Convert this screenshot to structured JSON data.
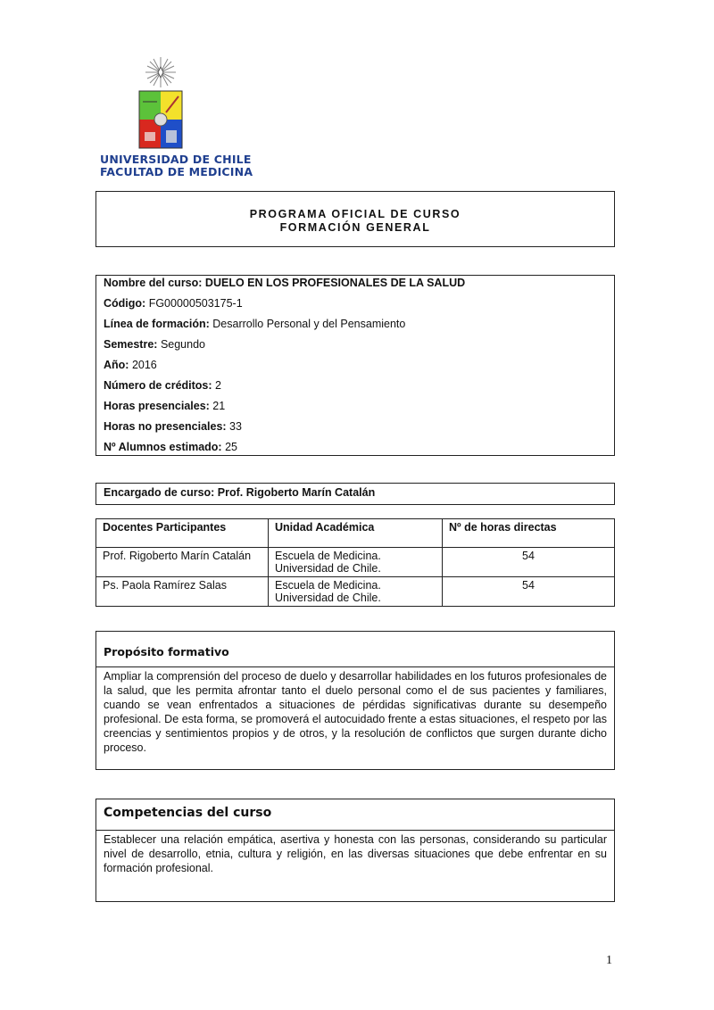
{
  "header": {
    "university": "UNIVERSIDAD DE CHILE",
    "faculty": "FACULTAD DE MEDICINA",
    "logo_colors": [
      "#5cc23a",
      "#f3e12b",
      "#d8281f",
      "#1f4fc8"
    ]
  },
  "title": {
    "line1": "PROGRAMA OFICIAL DE CURSO",
    "line2": "FORMACIÓN GENERAL"
  },
  "info": [
    {
      "label": "Nombre del curso:",
      "value": "DUELO EN LOS PROFESIONALES DE LA SALUD",
      "bold_value": true
    },
    {
      "label": "Código:",
      "value": "FG00000503175-1"
    },
    {
      "label": "Línea de formación:",
      "value": "Desarrollo Personal y del Pensamiento"
    },
    {
      "label": "Semestre:",
      "value": "Segundo"
    },
    {
      "label": "Año:",
      "value": "2016"
    },
    {
      "label": "Número de créditos:",
      "value": "2"
    },
    {
      "label": "Horas presenciales:",
      "value": "21"
    },
    {
      "label": "Horas no presenciales:",
      "value": "33"
    },
    {
      "label": "Nº Alumnos estimado:",
      "value": "25"
    }
  ],
  "encargado": "Encargado de curso: Prof. Rigoberto Marín Catalán",
  "docentes": {
    "headers": [
      "Docentes Participantes",
      "Unidad Académica",
      "Nº de horas directas"
    ],
    "rows": [
      [
        "Prof. Rigoberto Marín Catalán",
        "Escuela de Medicina.",
        "Universidad de Chile.",
        "54"
      ],
      [
        "Ps. Paola Ramírez Salas",
        "Escuela de Medicina.",
        "Universidad de Chile.",
        "54"
      ]
    ]
  },
  "proposito": {
    "heading": "Propósito formativo",
    "text": "Ampliar la comprensión del proceso de duelo y desarrollar habilidades en los futuros profesionales de la salud, que les permita afrontar tanto el duelo personal como el de sus pacientes y familiares, cuando se vean enfrentados a situaciones de pérdidas significativas durante su desempeño profesional. De esta forma, se promoverá el autocuidado frente a estas situaciones, el respeto por las creencias y sentimientos propios y de otros, y la resolución de conflictos que surgen durante dicho proceso."
  },
  "competencias": {
    "heading": "Competencias del curso",
    "text": "Establecer una relación empática, asertiva y honesta con las personas, considerando su particular nivel de desarrollo, etnia, cultura y religión, en las diversas situaciones que debe enfrentar en su formación profesional."
  },
  "page_number": "1"
}
